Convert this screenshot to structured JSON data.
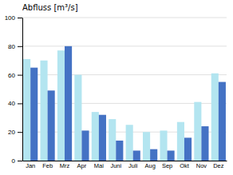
{
  "chart_data": {
    "type": "bar",
    "title": "Abfluss [m³/s]",
    "categories": [
      "Jan",
      "Feb",
      "Mrz",
      "Apr",
      "Mai",
      "Juni",
      "Juli",
      "Aug",
      "Sep",
      "Okt",
      "Nov",
      "Dez"
    ],
    "series": [
      {
        "color": "#b3e5f0",
        "values": [
          71,
          70,
          77,
          60,
          34,
          29,
          25,
          20,
          21,
          27,
          41,
          61
        ]
      },
      {
        "color": "#4472c4",
        "values": [
          65,
          49,
          80,
          21,
          32,
          14,
          7,
          8,
          7,
          16,
          24,
          55
        ]
      }
    ],
    "ylim": [
      0,
      100
    ],
    "yticks": [
      0,
      20,
      40,
      60,
      80,
      100
    ],
    "grid": true
  }
}
